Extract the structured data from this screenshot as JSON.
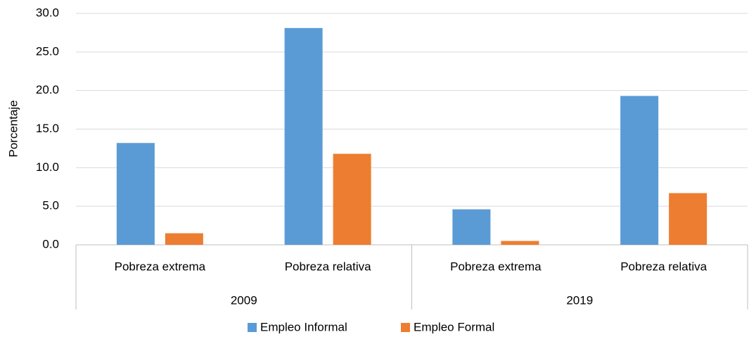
{
  "chart_data": {
    "type": "bar",
    "y_label": "Porcentaje",
    "categories": [
      "Pobreza extrema",
      "Pobreza relativa",
      "Pobreza extrema",
      "Pobreza relativa"
    ],
    "groups": [
      "2009",
      "2019"
    ],
    "series": [
      {
        "name": "Empleo Informal",
        "color": "#5b9bd5",
        "values": [
          13.2,
          28.1,
          4.6,
          19.3
        ]
      },
      {
        "name": "Empleo Formal",
        "color": "#ed7d31",
        "values": [
          1.5,
          11.8,
          0.5,
          6.7
        ]
      }
    ],
    "ylim": [
      0,
      30
    ],
    "yticks": [
      {
        "value": 0,
        "label": "0.0"
      },
      {
        "value": 5,
        "label": "5.0"
      },
      {
        "value": 10,
        "label": "10.0"
      },
      {
        "value": 15,
        "label": "15.0"
      },
      {
        "value": 20,
        "label": "20.0"
      },
      {
        "value": 25,
        "label": "25.0"
      },
      {
        "value": 30,
        "label": "30.0"
      }
    ],
    "grid": true
  }
}
